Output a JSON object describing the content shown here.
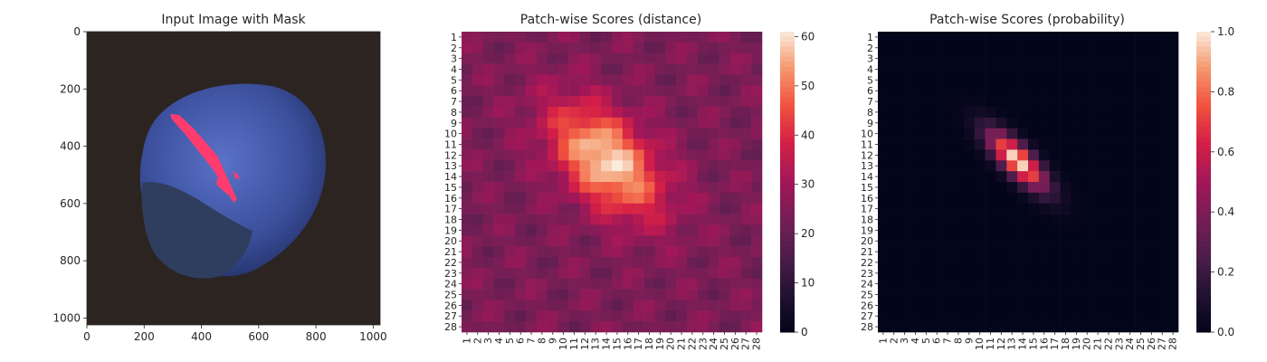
{
  "chart_data": [
    {
      "type": "image",
      "title": "Input Image with Mask",
      "xlim": [
        0,
        1024
      ],
      "ylim": [
        1024,
        0
      ],
      "xticks": [
        0,
        200,
        400,
        600,
        800,
        1000
      ],
      "yticks": [
        0,
        200,
        400,
        600,
        800,
        1000
      ],
      "xticklabels": [
        "0",
        "200",
        "400",
        "600",
        "800",
        "1000"
      ],
      "yticklabels": [
        "0",
        "200",
        "400",
        "600",
        "800",
        "1000"
      ],
      "colors": {
        "background": "#2b2421",
        "nut": "#3b4f9c",
        "cap": "#2f3d5e",
        "mask": "#ff3c6e"
      }
    },
    {
      "type": "heatmap",
      "title": "Patch-wise Scores (distance)",
      "rows": 28,
      "cols": 28,
      "x_ticklabels": [
        "1",
        "2",
        "3",
        "4",
        "5",
        "6",
        "7",
        "8",
        "9",
        "10",
        "11",
        "12",
        "13",
        "14",
        "15",
        "16",
        "17",
        "18",
        "19",
        "20",
        "21",
        "22",
        "23",
        "24",
        "25",
        "26",
        "27",
        "28"
      ],
      "y_ticklabels": [
        "1",
        "2",
        "3",
        "4",
        "5",
        "6",
        "7",
        "8",
        "9",
        "10",
        "11",
        "12",
        "13",
        "14",
        "15",
        "16",
        "17",
        "18",
        "19",
        "20",
        "21",
        "22",
        "23",
        "24",
        "25",
        "26",
        "27",
        "28"
      ],
      "colorbar": {
        "min": 0,
        "max": 61,
        "ticks": [
          0,
          10,
          20,
          30,
          40,
          50,
          60
        ],
        "ticklabels": [
          "0",
          "10",
          "20",
          "30",
          "40",
          "50",
          "60"
        ]
      },
      "colormap": "rocket",
      "model": {
        "base": 24,
        "wave_amp": 2.5,
        "blob_peak": 36,
        "blob_center": [
          11.5,
          13.0
        ],
        "blob_sigma_along": 4.5,
        "blob_sigma_across": 2.6,
        "angle_deg": 45
      }
    },
    {
      "type": "heatmap",
      "title": "Patch-wise Scores (probability)",
      "rows": 28,
      "cols": 28,
      "x_ticklabels": [
        "1",
        "2",
        "3",
        "4",
        "5",
        "6",
        "7",
        "8",
        "9",
        "10",
        "11",
        "12",
        "13",
        "14",
        "15",
        "16",
        "17",
        "18",
        "19",
        "20",
        "21",
        "22",
        "23",
        "24",
        "25",
        "26",
        "27",
        "28"
      ],
      "y_ticklabels": [
        "1",
        "2",
        "3",
        "4",
        "5",
        "6",
        "7",
        "8",
        "9",
        "10",
        "11",
        "12",
        "13",
        "14",
        "15",
        "16",
        "17",
        "18",
        "19",
        "20",
        "21",
        "22",
        "23",
        "24",
        "25",
        "26",
        "27",
        "28"
      ],
      "colorbar": {
        "min": 0,
        "max": 1,
        "ticks": [
          0,
          0.2,
          0.4,
          0.6,
          0.8,
          1.0
        ],
        "ticklabels": [
          "0.0",
          "0.2",
          "0.4",
          "0.6",
          "0.8",
          "1.0"
        ]
      },
      "colormap": "rocket",
      "model": {
        "base": 0.0,
        "blob_peak": 1.0,
        "blob_center": [
          11.5,
          12.5
        ],
        "blob_sigma_along": 3.2,
        "blob_sigma_across": 1.1,
        "angle_deg": 45
      }
    }
  ]
}
